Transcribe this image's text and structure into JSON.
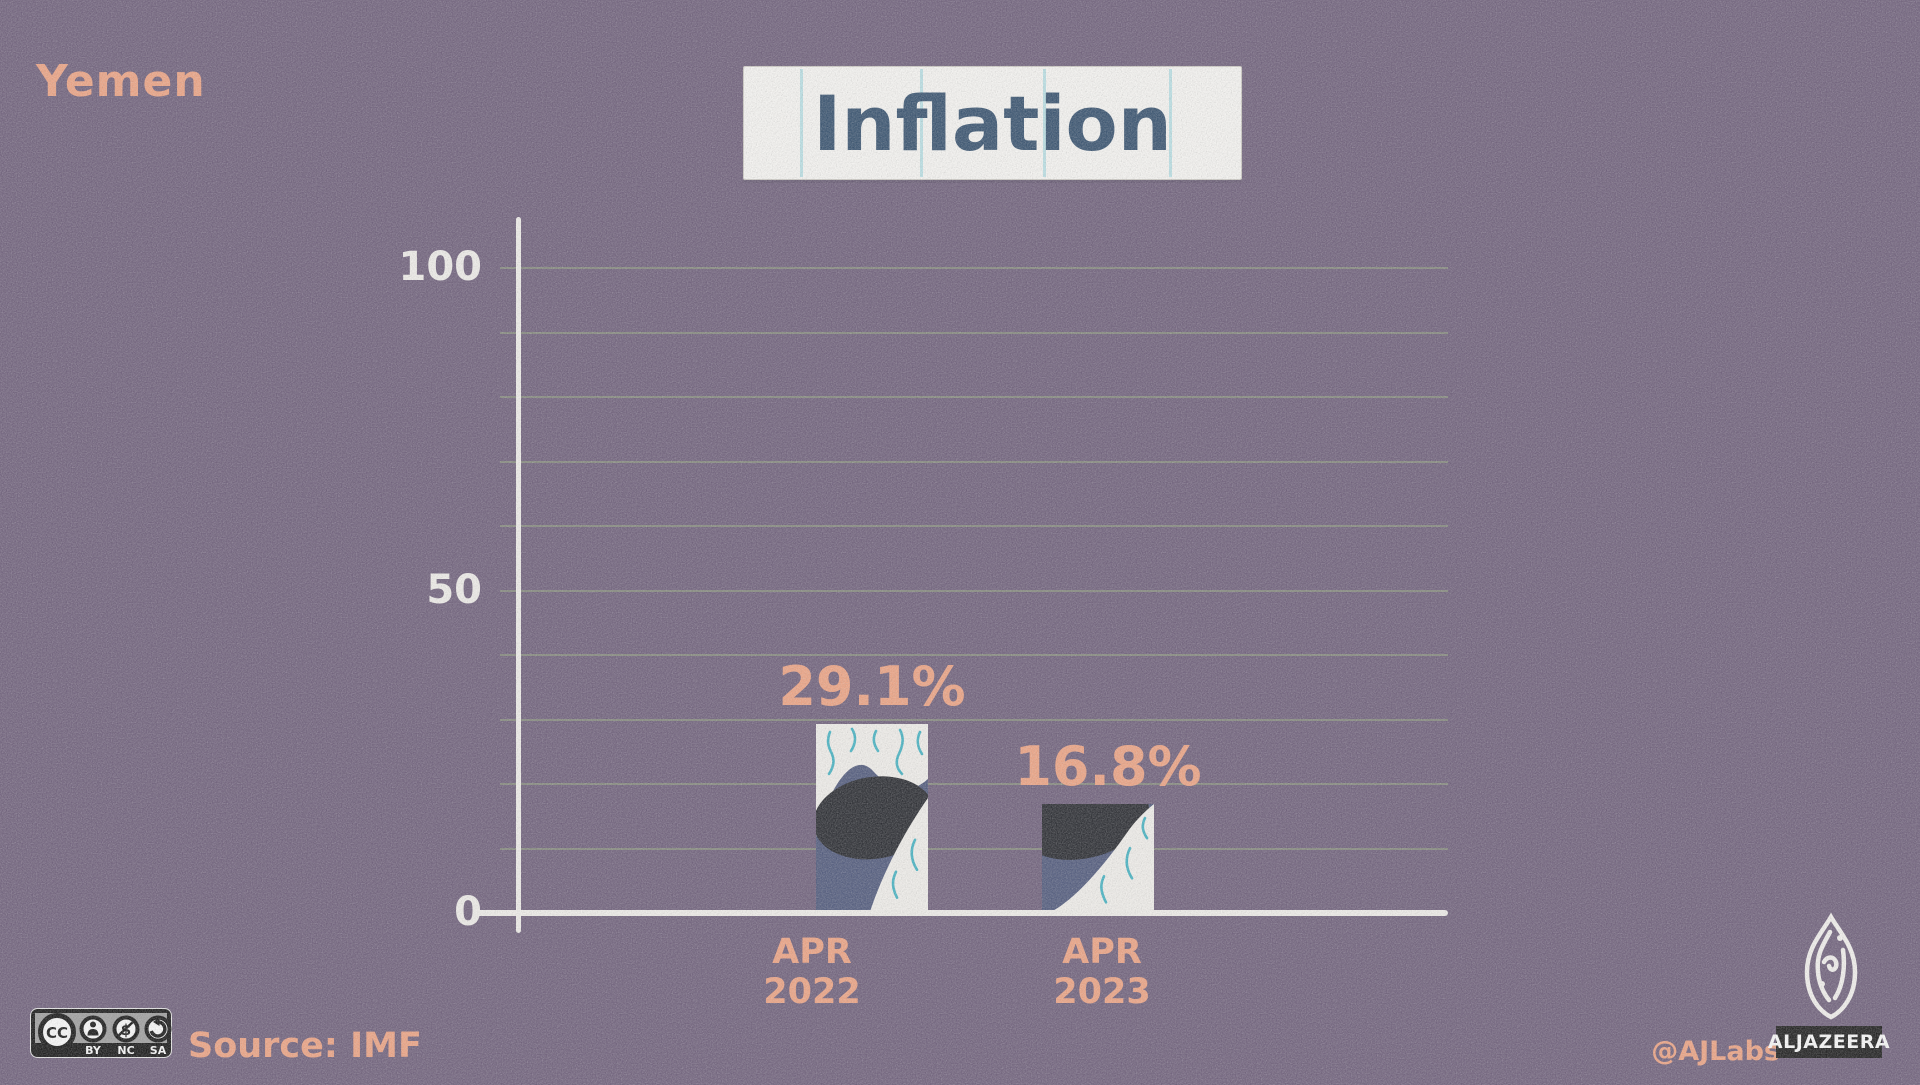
{
  "page": {
    "region_label": "Yemen",
    "title": "Inflation"
  },
  "chart_data": {
    "type": "bar",
    "title": "Inflation",
    "categories": [
      "APR 2022",
      "APR 2023"
    ],
    "values": [
      29.1,
      16.8
    ],
    "value_labels": [
      "29.1%",
      "16.8%"
    ],
    "ylabel": "",
    "xlabel": "",
    "ylim": [
      0,
      100
    ],
    "yticks": [
      0,
      50,
      100
    ],
    "gridline_step": 10,
    "grid": true,
    "legend": "none"
  },
  "footer": {
    "source": "Source: IMF",
    "handle": "@AJLabs",
    "logo_text": "ALJAZEERA",
    "license": {
      "cc_label": "CC",
      "nc_symbol": "$",
      "labels": [
        "BY",
        "NC",
        "SA"
      ]
    }
  },
  "colors": {
    "background": "#6b5b78",
    "accent_salmon": "#f2a381",
    "title_navy": "#2e4b6a",
    "axis_white": "#f4f2ee",
    "gridline_green": "#96aa7d",
    "bar_navy": "#4a5479",
    "bar_black": "#1f2127",
    "bar_white": "#f5f3ef",
    "squiggle_teal": "#3db3c4"
  }
}
